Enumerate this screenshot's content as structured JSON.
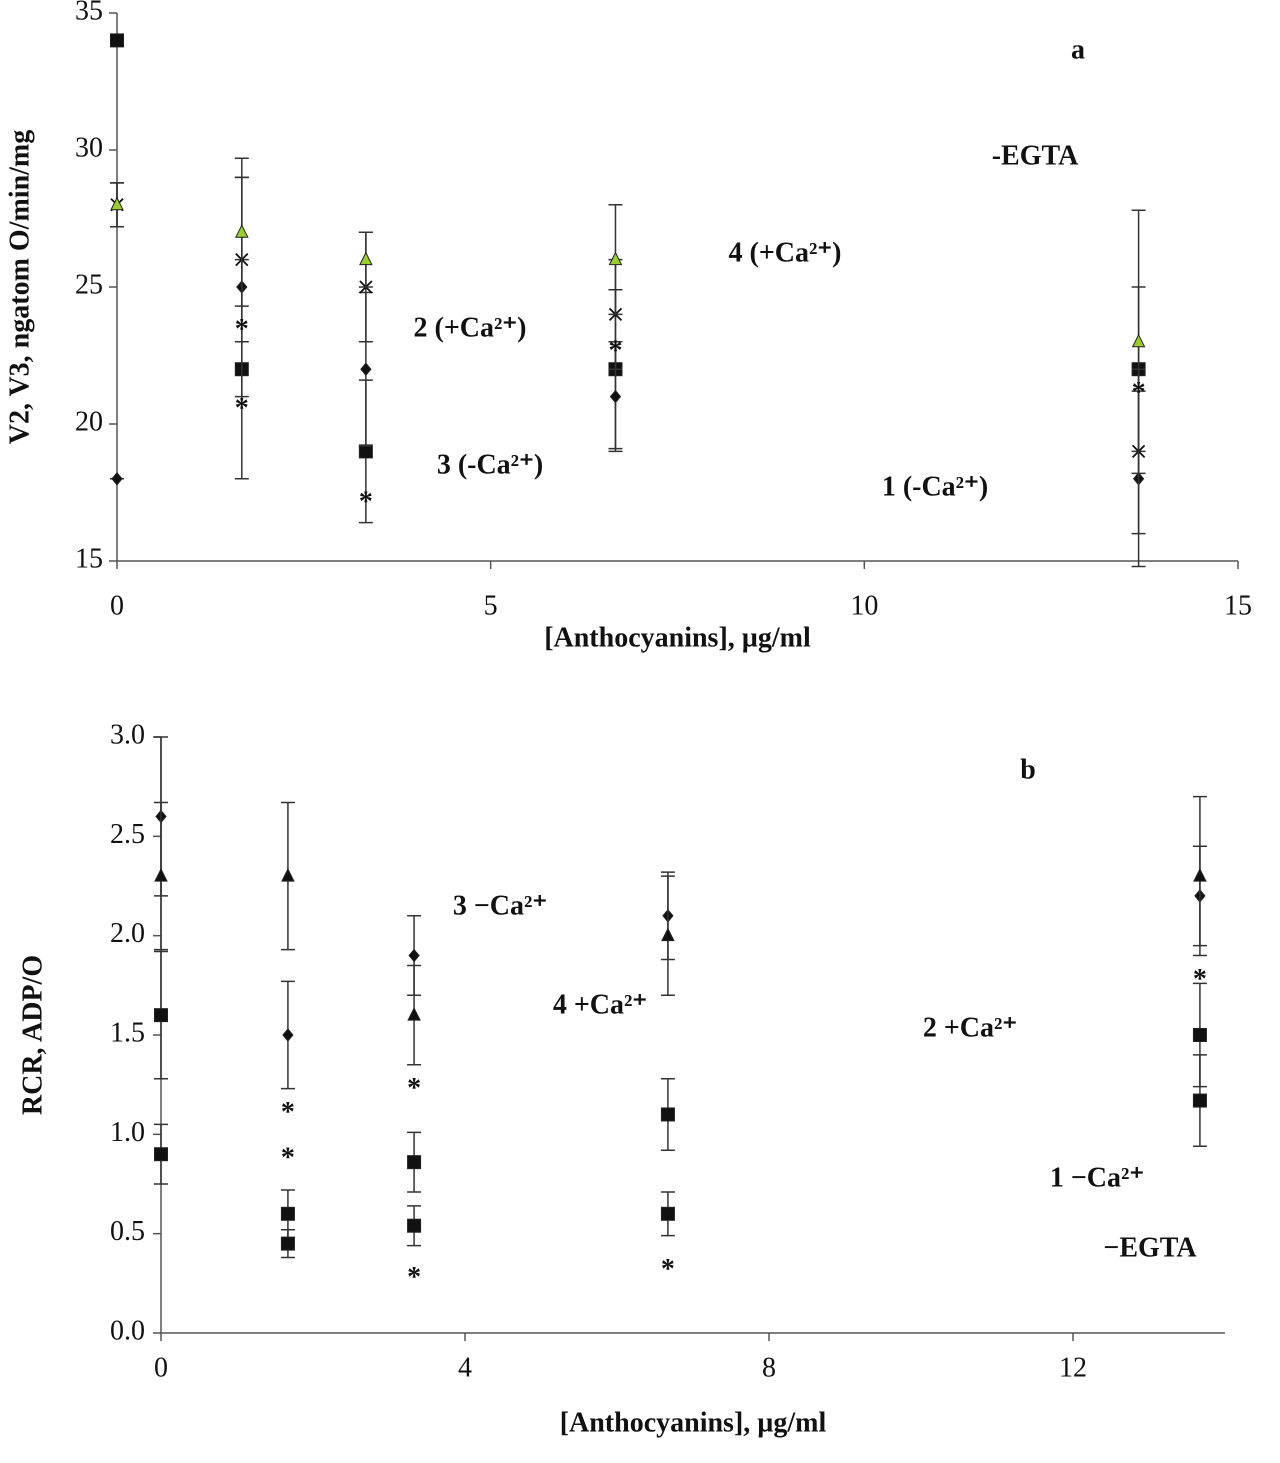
{
  "chart_data": [
    {
      "type": "line",
      "panel": "a",
      "note": "-EGTA",
      "xlabel": "[Anthocyanins], µg/ml",
      "ylabel": "V2, V3, ngatom  O/min/mg",
      "x": [
        0,
        1.67,
        3.33,
        6.67,
        13.67
      ],
      "xlim": [
        0,
        15
      ],
      "xticks": [
        0,
        5,
        10,
        15
      ],
      "ylim": [
        15,
        35
      ],
      "yticks": [
        15,
        20,
        25,
        30,
        35
      ],
      "series": [
        {
          "name": "3 (-Ca²⁺)",
          "color": "#111111",
          "marker": "square",
          "values": [
            34,
            22,
            19,
            22,
            22
          ],
          "errors": [
            0,
            4,
            2.6,
            2.9,
            3
          ]
        },
        {
          "name": "1 (-Ca²⁺)",
          "color": "#111111",
          "marker": "diamond",
          "values": [
            18,
            25,
            22,
            21,
            18
          ],
          "errors": [
            0,
            4,
            2.8,
            2,
            3.2
          ]
        },
        {
          "name": "2 (+Ca²⁺)",
          "color": "#111111",
          "marker": "cross",
          "values": [
            28,
            26,
            25,
            24,
            19
          ],
          "errors": [
            0.8,
            3,
            2,
            2,
            3
          ]
        },
        {
          "name": "4 (+Ca²⁺)",
          "color": "#9acd32",
          "marker": "triangle",
          "values": [
            28,
            27,
            26,
            26,
            23
          ],
          "errors": [
            0.8,
            2.7,
            1,
            2,
            4.8
          ]
        }
      ],
      "annotations": [
        {
          "text": "*",
          "x": 1.67,
          "y": 23.6
        },
        {
          "text": "*",
          "x": 1.67,
          "y": 20.7
        },
        {
          "text": "*",
          "x": 3.33,
          "y": 17.3
        },
        {
          "text": "*",
          "x": 6.67,
          "y": 22.8
        },
        {
          "text": "*",
          "x": 13.67,
          "y": 21.3
        }
      ]
    },
    {
      "type": "line",
      "panel": "b",
      "note": "−EGTA",
      "xlabel": "[Anthocyanins], µg/ml",
      "ylabel": "RCR,  ADP/O",
      "x": [
        0,
        1.67,
        3.33,
        6.67,
        13.67
      ],
      "xlim": [
        0,
        14
      ],
      "xticks": [
        0,
        4,
        8,
        12
      ],
      "ylim": [
        0,
        3
      ],
      "yticks": [
        {
          "value": 0,
          "label": "0.0"
        },
        {
          "value": 0.5,
          "label": "0.5"
        },
        {
          "value": 1,
          "label": "1.0"
        },
        {
          "value": 1.5,
          "label": "1.5"
        },
        {
          "value": 2,
          "label": "2.0"
        },
        {
          "value": 2.5,
          "label": "2.5"
        },
        {
          "value": 3,
          "label": "3.0"
        }
      ],
      "series": [
        {
          "name": "3 −Ca²⁺",
          "color": "#111111",
          "marker": "diamond",
          "values": [
            2.6,
            1.5,
            1.9,
            2.1,
            2.2
          ],
          "errors": [
            0.4,
            0.27,
            0.2,
            0.22,
            0.25
          ]
        },
        {
          "name": "4 +Ca²⁺",
          "color": "#111111",
          "marker": "triangle",
          "values": [
            2.3,
            2.3,
            1.6,
            2.0,
            2.3
          ],
          "errors": [
            0.37,
            0.37,
            0.25,
            0.3,
            0.4
          ]
        },
        {
          "name": "2 +Ca²⁺",
          "color": "#111111",
          "marker": "square",
          "values": [
            1.6,
            0.6,
            0.86,
            1.1,
            1.5
          ],
          "errors": [
            0.32,
            0.12,
            0.15,
            0.18,
            0.26
          ]
        },
        {
          "name": "1 −Ca²⁺",
          "color": "#111111",
          "marker": "square",
          "values": [
            0.9,
            0.45,
            0.54,
            0.6,
            1.17
          ],
          "errors": [
            0.15,
            0.07,
            0.1,
            0.11,
            0.23
          ]
        }
      ],
      "annotations": [
        {
          "text": "*",
          "x": 1.67,
          "y": 1.13
        },
        {
          "text": "*",
          "x": 1.67,
          "y": 0.9
        },
        {
          "text": "*",
          "x": 3.33,
          "y": 1.25
        },
        {
          "text": "*",
          "x": 3.33,
          "y": 0.3
        },
        {
          "text": "*",
          "x": 6.67,
          "y": 0.34
        },
        {
          "text": "*",
          "x": 13.67,
          "y": 1.8
        }
      ]
    }
  ]
}
